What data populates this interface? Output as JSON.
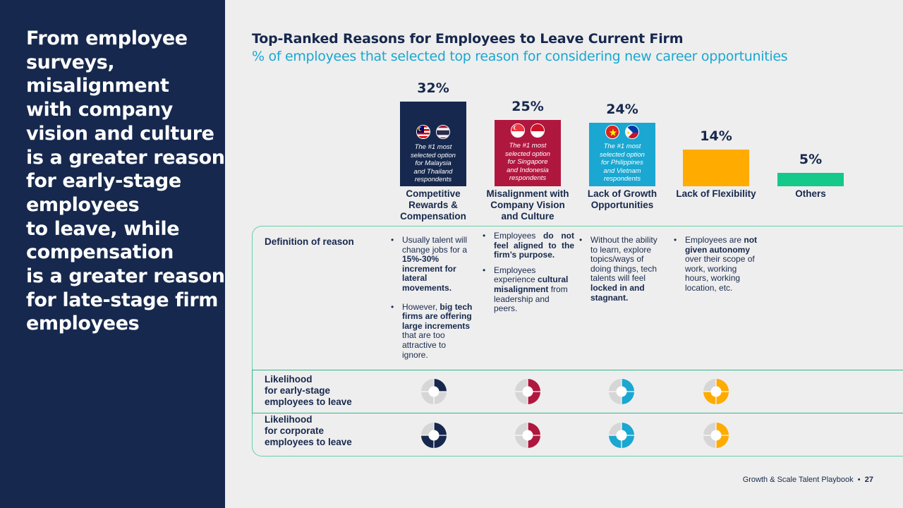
{
  "headline": {
    "lines": [
      "From employee",
      "surveys,",
      "misalignment",
      "with company",
      "vision and culture",
      "is a greater reason",
      "for early-stage",
      "employees",
      "to leave, while",
      "compensation",
      "is a greater reason",
      "for late-stage firm",
      "employees"
    ]
  },
  "chart_data": {
    "type": "bar",
    "title": "Top-Ranked Reasons for Employees to Leave Current Firm",
    "subtitle": "% of employees that selected top reason for considering new career opportunities",
    "categories": [
      {
        "line1": "Competitive",
        "line2": "Rewards &",
        "line3": "Compensation"
      },
      {
        "line1": "Misalignment with",
        "line2": "Company Vision",
        "line3": "and Culture"
      },
      {
        "line1": "Lack of Growth",
        "line2": "Opportunities",
        "line3": ""
      },
      {
        "line1": "Lack of Flexibility",
        "line2": "",
        "line3": ""
      },
      {
        "line1": "Others",
        "line2": "",
        "line3": ""
      }
    ],
    "values": [
      32,
      25,
      24,
      14,
      5
    ],
    "value_labels": [
      "32%",
      "25%",
      "24%",
      "14%",
      "5%"
    ],
    "colors": [
      "#16284d",
      "#b0173f",
      "#1aa7d1",
      "#ffab00",
      "#14c98a"
    ],
    "bar_notes": [
      {
        "l1": "The #1 most",
        "l2": "selected option",
        "l3": "for Malaysia",
        "l4": "and Thailand",
        "l5": "respondents",
        "flags": [
          "malaysia-flag",
          "thailand-flag"
        ]
      },
      {
        "l1": "The #1 most",
        "l2": "selected option",
        "l3": "for Singapore",
        "l4": "and Indonesia",
        "l5": "respondents",
        "flags": [
          "singapore-flag",
          "indonesia-flag"
        ]
      },
      {
        "l1": "The #1 most",
        "l2": "selected option",
        "l3": "for Philippines",
        "l4": "and Vietnam",
        "l5": "respondents",
        "flags": [
          "vietnam-flag",
          "philippines-flag"
        ]
      }
    ]
  },
  "table": {
    "definition_label": "Definition of reason",
    "early_label": {
      "l1": "Likelihood",
      "l2": "for early-stage",
      "l3": "employees to leave"
    },
    "corporate_label": {
      "l1": "Likelihood",
      "l2": "for corporate",
      "l3": "employees to leave"
    },
    "definitions": {
      "c1b1": {
        "a": "Usually talent will change jobs for a ",
        "b": "15%-30% increment for lateral movements."
      },
      "c1b2": {
        "a": "However, ",
        "b": "big tech firms are offering large increments",
        "c": " that are too attractive to ignore."
      },
      "c2b1": {
        "a": "Employees ",
        "b": "do not feel aligned to the firm’s purpose."
      },
      "c2b2": {
        "a": "Employees experience ",
        "b": "cultural misalignment",
        "c": " from leadership and peers."
      },
      "c3b1": {
        "a": "Without the ability to learn, explore topics/ways of doing things, tech talents will feel ",
        "b": "locked in and stagnant."
      },
      "c4b1": {
        "a": "Employees are ",
        "b": "not given autonomy",
        "c": " over their scope of work, working hours, working location, etc."
      }
    },
    "likelihood_early": [
      0.25,
      0.5,
      0.5,
      0.75
    ],
    "likelihood_corporate": [
      0.75,
      0.5,
      0.75,
      0.5
    ]
  },
  "footer": {
    "text": "Growth & Scale Talent Playbook",
    "separator": "•",
    "page": "27"
  }
}
